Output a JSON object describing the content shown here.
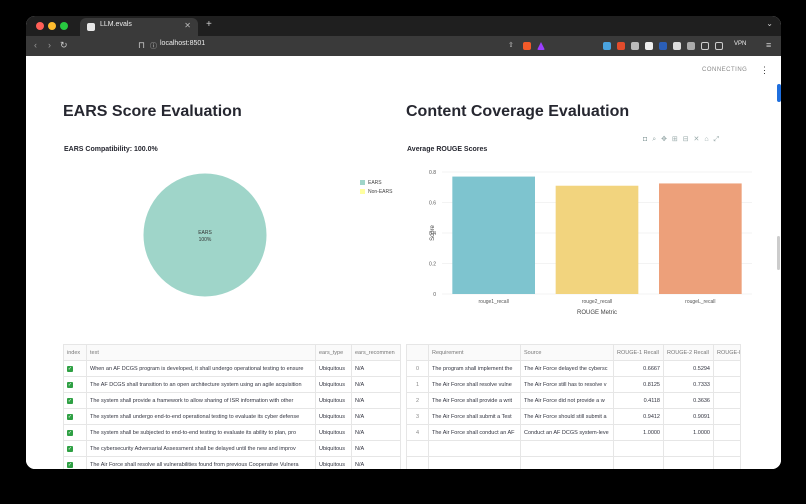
{
  "browser": {
    "tab_title": "LLM.evals",
    "url": "localhost:8501",
    "vpn_label": "VPN"
  },
  "status": {
    "connecting": "CONNECTING"
  },
  "left": {
    "title": "EARS Score Evaluation",
    "subtitle": "EARS Compatibility: 100.0%",
    "pie": {
      "slice_label": "EARS",
      "slice_pct": "100%",
      "legend": [
        "EARS",
        "Non-EARS"
      ],
      "colors": [
        "#9fd5c9",
        "#ffffa0"
      ]
    }
  },
  "right": {
    "title": "Content Coverage Evaluation",
    "subtitle": "Average ROUGE Scores"
  },
  "chart_data": {
    "type": "bar",
    "title": "Average ROUGE Scores",
    "categories": [
      "rouge1_recall",
      "rouge2_recall",
      "rougeL_recall"
    ],
    "values": [
      0.77,
      0.71,
      0.725
    ],
    "colors": [
      "#7ec4cf",
      "#f2d47e",
      "#eda07a"
    ],
    "xlabel": "ROUGE Metric",
    "ylabel": "Score",
    "ylim": [
      0,
      0.8
    ],
    "yticks": [
      "0",
      "0.2",
      "0.4",
      "0.6",
      "0.8"
    ],
    "grid": true
  },
  "ears_table": {
    "columns": [
      "index",
      "text",
      "ears_type",
      "ears_recommen"
    ],
    "rows": [
      [
        "When an AF DCGS program is developed, it shall undergo operational testing to ensure",
        "Ubiquitous",
        "N/A"
      ],
      [
        "The AF DCGS shall transition to an open architecture system using an agile acquisition",
        "Ubiquitous",
        "N/A"
      ],
      [
        "The system shall provide a framework to allow sharing of ISR information with other",
        "Ubiquitous",
        "N/A"
      ],
      [
        "The system shall undergo end-to-end operational testing to evaluate its cyber defense",
        "Ubiquitous",
        "N/A"
      ],
      [
        "The system shall be subjected to end-to-end testing to evaluate its ability to plan, pro",
        "Ubiquitous",
        "N/A"
      ],
      [
        "The cybersecurity Adversarial Assessment shall be delayed until the new and improv",
        "Ubiquitous",
        "N/A"
      ],
      [
        "The Air Force shall resolve all vulnerabilities found from previous Cooperative Vulnera",
        "Ubiquitous",
        "N/A"
      ],
      [
        "The Air Force shall submit a Test and Evaluation Master Plan for DOT&E approval, whi",
        "Ubiquitous",
        "N/A"
      ]
    ]
  },
  "rouge_table": {
    "columns": [
      "",
      "Requirement",
      "Source",
      "ROUGE-1 Recall",
      "ROUGE-2 Recall",
      "ROUGE-L"
    ],
    "rows": [
      [
        "0",
        "The program shall implement the",
        "The Air Force delayed the cybersc",
        "0.6667",
        "0.5294"
      ],
      [
        "1",
        "The Air Force shall resolve vulne",
        "The Air Force still has to resolve v",
        "0.8125",
        "0.7333"
      ],
      [
        "2",
        "The Air Force shall provide a writ",
        "The Air Force did not provide a w",
        "0.4118",
        "0.3636"
      ],
      [
        "3",
        "The Air Force shall submit a Test",
        "The Air Force should still submit a",
        "0.9412",
        "0.9091"
      ],
      [
        "4",
        "The Air Force shall conduct an AF",
        "Conduct an AF DCGS system-leve",
        "1.0000",
        "1.0000"
      ]
    ]
  }
}
